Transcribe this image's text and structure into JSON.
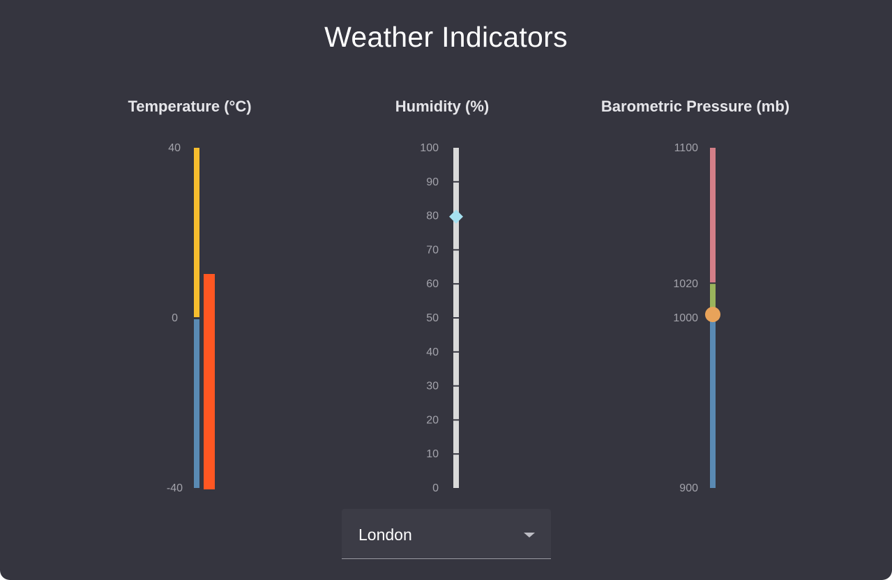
{
  "title": "Weather Indicators",
  "gauges": {
    "temperature": {
      "label": "Temperature (°C)",
      "ticks": [
        "40",
        "0",
        "-40"
      ],
      "range": [
        -40,
        40
      ],
      "value": 10,
      "colors": {
        "warm": "#f6bd2e",
        "cold": "#5a8ab3",
        "value_bar": "#ff5722"
      }
    },
    "humidity": {
      "label": "Humidity (%)",
      "ticks": [
        "100",
        "90",
        "80",
        "70",
        "60",
        "50",
        "40",
        "30",
        "20",
        "10",
        "0"
      ],
      "range": [
        0,
        100
      ],
      "value": 81,
      "colors": {
        "track": "#d9d9d9",
        "marker": "#a6e1f1"
      }
    },
    "pressure": {
      "label": "Barometric Pressure (mb)",
      "ticks": [
        "1100",
        "1020",
        "1000",
        "900"
      ],
      "range": [
        900,
        1100
      ],
      "value": 1002,
      "colors": {
        "high": "#d37f88",
        "normal": "#9ab45c",
        "low": "#5a8ab3",
        "marker": "#e8a35a"
      }
    }
  },
  "city_select": {
    "value": "London",
    "icon": "chevron-down-icon"
  }
}
